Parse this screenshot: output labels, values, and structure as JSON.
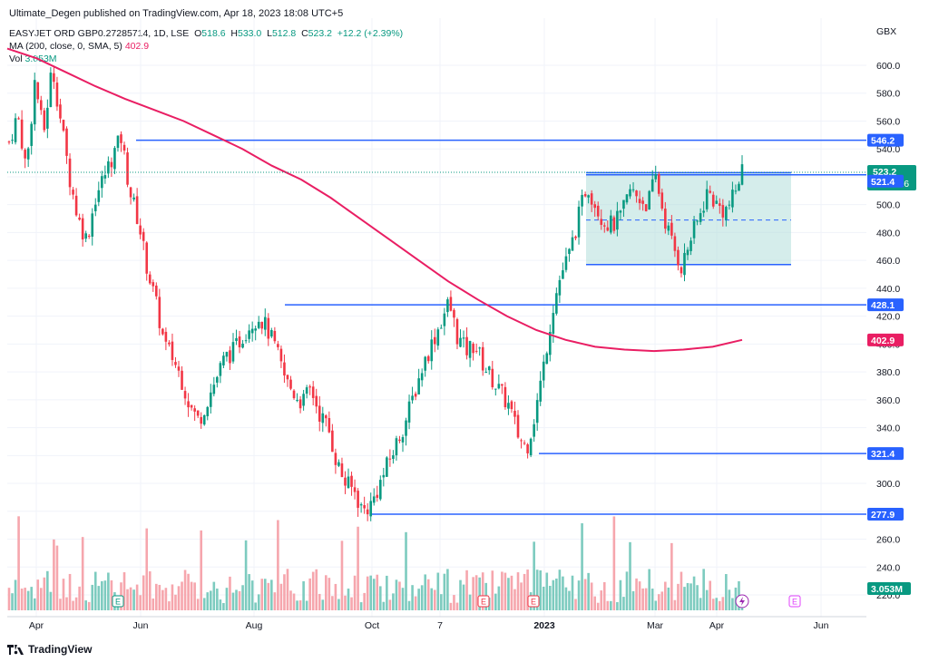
{
  "header": {
    "publisher_line": "Ultimate_Degen published on TradingView.com, Apr 18, 2023 18:08 UTC+5"
  },
  "legend": {
    "symbol_line": "EASYJET ORD GBP0.27285714, 1D, LSE",
    "open_label": "O",
    "open": "518.6",
    "high_label": "H",
    "high": "533.0",
    "low_label": "L",
    "low": "512.8",
    "close_label": "C",
    "close": "523.2",
    "change": "+12.2 (+2.39%)",
    "ma_label": "MA (200, close, 0, SMA, 5)",
    "ma_value": "402.9",
    "vol_label": "Vol",
    "vol_value": "3.053M"
  },
  "footer": {
    "brand": "TradingView"
  },
  "colors": {
    "up": "#089981",
    "down": "#f23645",
    "ma": "#e91e63",
    "line": "#2962ff",
    "up_vol": "#7dcbbf",
    "down_vol": "#f6a6ad",
    "box": "#b2dfdb"
  },
  "chart_data": {
    "type": "candlestick",
    "currency": "GBX",
    "y_axis_ticks": [
      "600.0",
      "580.0",
      "560.0",
      "540.0",
      "520.0",
      "500.0",
      "480.0",
      "460.0",
      "440.0",
      "420.0",
      "400.0",
      "380.0",
      "360.0",
      "340.0",
      "320.0",
      "300.0",
      "280.0",
      "260.0",
      "240.0",
      "220.0"
    ],
    "x_axis_ticks": [
      "Apr",
      "Jun",
      "Aug",
      "Oct",
      "7",
      "2023",
      "Mar",
      "Apr",
      "Jun"
    ],
    "ylim": [
      215,
      615
    ],
    "last_price": "523.2",
    "countdown": "03:11:16",
    "horizontal_levels": [
      {
        "value": 546.2,
        "label": "546.2"
      },
      {
        "value": 521.4,
        "label": "521.4"
      },
      {
        "value": 428.1,
        "label": "428.1"
      },
      {
        "value": 321.4,
        "label": "321.4"
      },
      {
        "value": 277.9,
        "label": "277.9"
      }
    ],
    "range_box": {
      "top": 523,
      "bottom": 457,
      "mid": 489
    },
    "ma200_value": "402.9",
    "volume_value": "3.053M",
    "price_path": [
      545,
      565,
      525,
      590,
      550,
      600,
      560,
      520,
      490,
      475,
      505,
      520,
      535,
      548,
      510,
      488,
      455,
      430,
      400,
      390,
      375,
      355,
      345,
      360,
      375,
      390,
      395,
      405,
      415,
      420,
      410,
      395,
      375,
      365,
      358,
      368,
      350,
      340,
      315,
      300,
      295,
      280,
      285,
      300,
      315,
      330,
      345,
      365,
      385,
      400,
      415,
      430,
      405,
      395,
      400,
      385,
      375,
      365,
      355,
      335,
      325,
      350,
      385,
      425,
      450,
      465,
      490,
      515,
      500,
      488,
      485,
      492,
      510,
      505,
      500,
      520,
      490,
      470,
      455,
      475,
      490,
      510,
      500,
      495,
      505,
      525
    ],
    "ma_path": [
      612,
      605,
      595,
      585,
      576,
      568,
      560,
      550,
      540,
      528,
      518,
      505,
      490,
      475,
      460,
      445,
      432,
      420,
      410,
      403,
      398,
      396,
      395,
      396,
      398,
      403
    ],
    "events": [
      "E",
      "E",
      "E",
      "E"
    ]
  }
}
